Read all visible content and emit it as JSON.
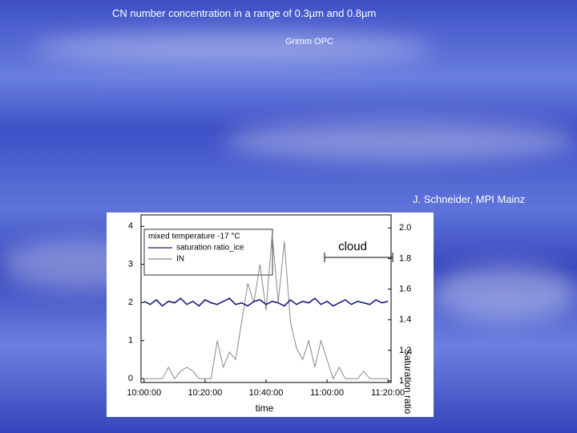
{
  "slide": {
    "title": "CN number concentration in a range of 0.3µm and 0.8µm",
    "subtitle": "Grimm OPC",
    "credit": "J. Schneider, MPI Mainz"
  },
  "chart_data": {
    "type": "line",
    "xlabel": "time",
    "y2label": "Saturation ratio",
    "legend_title": "mixed temperature -17 °C",
    "annotation": "cloud",
    "x": [
      "10:00:00",
      "10:02:00",
      "10:04:00",
      "10:06:00",
      "10:08:00",
      "10:10:00",
      "10:12:00",
      "10:14:00",
      "10:16:00",
      "10:18:00",
      "10:20:00",
      "10:22:00",
      "10:24:00",
      "10:26:00",
      "10:28:00",
      "10:30:00",
      "10:32:00",
      "10:34:00",
      "10:36:00",
      "10:38:00",
      "10:40:00",
      "10:42:00",
      "10:44:00",
      "10:46:00",
      "10:48:00",
      "10:50:00",
      "10:52:00",
      "10:54:00",
      "10:56:00",
      "10:58:00",
      "11:00:00",
      "11:02:00",
      "11:04:00",
      "11:06:00",
      "11:08:00",
      "11:10:00",
      "11:12:00",
      "11:14:00",
      "11:16:00",
      "11:18:00",
      "11:20:00"
    ],
    "series": [
      {
        "name": "saturation ratio_ice",
        "color": "#1a1a80",
        "axis": "y2",
        "values": [
          1.52,
          1.5,
          1.53,
          1.49,
          1.52,
          1.51,
          1.54,
          1.5,
          1.52,
          1.49,
          1.53,
          1.51,
          1.5,
          1.52,
          1.54,
          1.5,
          1.51,
          1.49,
          1.52,
          1.53,
          1.5,
          1.52,
          1.51,
          1.49,
          1.53,
          1.5,
          1.52,
          1.51,
          1.54,
          1.5,
          1.52,
          1.49,
          1.51,
          1.53,
          1.5,
          1.52,
          1.51,
          1.5,
          1.53,
          1.51,
          1.52
        ]
      },
      {
        "name": "IN",
        "color": "#888888",
        "values": [
          0,
          0,
          0,
          0,
          0.3,
          0,
          0.2,
          0.3,
          0.2,
          0,
          0,
          0,
          1.0,
          0.3,
          0.7,
          0.5,
          1.5,
          2.5,
          2.0,
          3.0,
          1.8,
          3.8,
          2.0,
          3.6,
          1.5,
          0.8,
          0.5,
          1.0,
          0.3,
          1.0,
          0.5,
          0,
          0.3,
          0,
          0,
          0,
          0.2,
          0,
          0,
          0,
          0
        ]
      }
    ],
    "xlim": [
      "09:59:00",
      "11:21:00"
    ],
    "xticks": [
      "10:00:00",
      "10:20:00",
      "10:40:00",
      "11:00:00",
      "11:20:00"
    ],
    "ylim": [
      -0.1,
      4.3
    ],
    "yticks": [
      0,
      1,
      2,
      3,
      4
    ],
    "y2lim": [
      0.99,
      2.085
    ],
    "y2ticks": [
      1,
      1.2,
      1.4,
      1.6,
      1.8,
      {
        "value": 2,
        "label": "2.0"
      }
    ]
  }
}
